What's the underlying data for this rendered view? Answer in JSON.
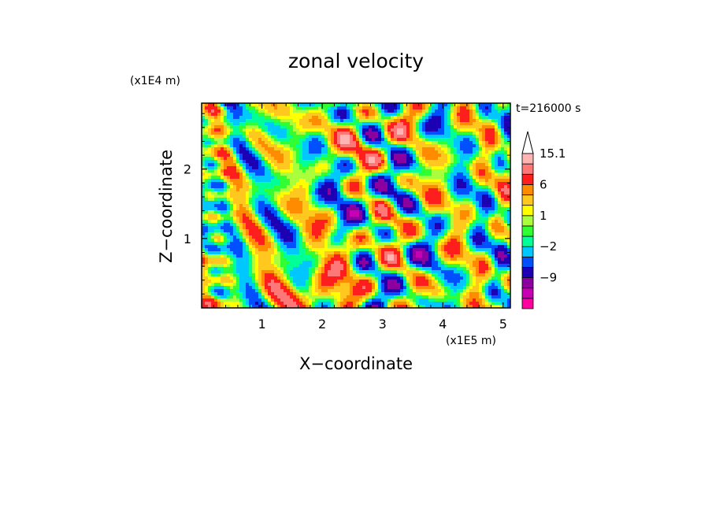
{
  "chart_data": {
    "type": "heatmap",
    "title": "zonal velocity",
    "xlabel": "X−coordinate",
    "ylabel": "Z−coordinate",
    "x_scale_label": "(x1E5 m)",
    "y_scale_label": "(x1E4 m)",
    "time_label": "t=216000 s",
    "xlim": [
      0,
      5.12
    ],
    "ylim": [
      0,
      2.95
    ],
    "x_ticks": [
      1,
      2,
      3,
      4,
      5
    ],
    "x_tick_labels": [
      "1",
      "2",
      "3",
      "4",
      "5"
    ],
    "y_ticks": [
      1,
      2
    ],
    "y_tick_labels": [
      "1",
      "2"
    ],
    "colorbar": {
      "levels": [
        -15,
        -12,
        -9,
        -6,
        -4,
        -2,
        -1,
        0,
        1,
        2,
        4,
        6,
        9,
        12,
        15.1
      ],
      "colors": [
        "#ff00a0",
        "#c800b4",
        "#8c00a0",
        "#1e00b4",
        "#0050ff",
        "#00c8ff",
        "#00ff96",
        "#32ff32",
        "#aaff3c",
        "#ffff00",
        "#ffc81e",
        "#ff8c00",
        "#ff1e1e",
        "#ff7878",
        "#ffb4b4"
      ],
      "extend_max_color": "#ffffff",
      "tick_labels": [
        "15.1",
        "6",
        "1",
        "−2",
        "−9"
      ],
      "tick_values": [
        15.1,
        6,
        1,
        -2,
        -9
      ]
    }
  }
}
